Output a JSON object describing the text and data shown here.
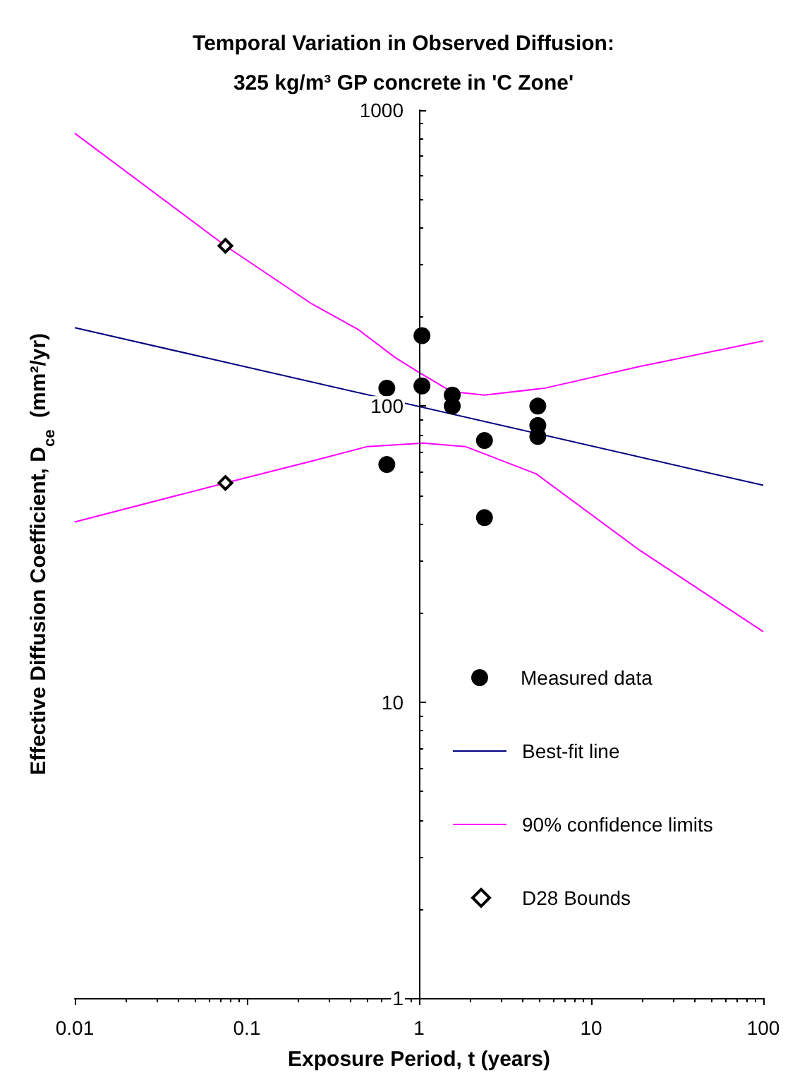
{
  "chart_data": {
    "type": "scatter",
    "title": "Temporal Variation in Observed Diffusion:\n325 kg/m³ GP concrete in 'C Zone'",
    "xlabel": "Exposure Period, t (years)",
    "ylabel": "Effective Diffusion Coefficient, D$_{ce}$  (mm²/yr)",
    "log": "xy",
    "xlim": [
      0.01,
      100
    ],
    "ylim": [
      1,
      1000
    ],
    "xticks": [
      0.01,
      0.1,
      1,
      10,
      100
    ],
    "yticks": [
      1,
      10,
      100,
      1000
    ],
    "grid": false,
    "legend": "bottom right",
    "series": [
      {
        "name": "Measured data",
        "marker": "circle",
        "color": "#000000",
        "x": [
          0.65,
          0.65,
          1.04,
          1.04,
          1.56,
          1.56,
          2.4,
          2.4,
          4.9,
          4.9,
          4.9
        ],
        "values": [
          115,
          63.5,
          173,
          117,
          109,
          100,
          76.5,
          42,
          100,
          86,
          79
        ]
      },
      {
        "name": "Best-fit line",
        "type": "line",
        "marker": "none",
        "color": "#000080",
        "x": [
          0.01,
          100
        ],
        "values": [
          184,
          54
        ]
      },
      {
        "name": "90% confidence limits",
        "type": "line",
        "marker": "none",
        "color": "#ff00ff",
        "x": [
          0.01,
          0.075,
          0.234,
          0.44,
          0.725,
          1,
          1.54,
          2.4,
          5.4,
          19.1,
          100
        ],
        "values": [
          835,
          348,
          223,
          182,
          146,
          130,
          112,
          109,
          115,
          136,
          166
        ]
      },
      {
        "type": "line",
        "marker": "none",
        "color": "#ff00ff",
        "x": [
          0.01,
          0.075,
          0.234,
          0.5,
          1.06,
          1.86,
          4.8,
          19.1,
          100
        ],
        "values": [
          40.6,
          55,
          65,
          73,
          75,
          73,
          59,
          32.6,
          17.3
        ]
      },
      {
        "name": "D28 Bounds",
        "marker": "diamond",
        "color": "#000000",
        "x": [
          0.075,
          0.075
        ],
        "values": [
          348,
          55
        ]
      }
    ]
  }
}
